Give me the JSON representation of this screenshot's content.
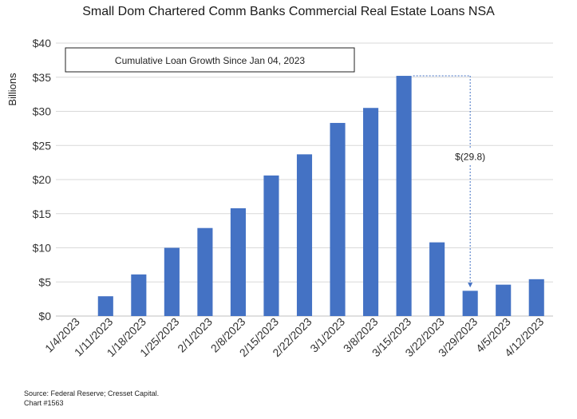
{
  "chart_data": {
    "type": "bar",
    "title": "Small Dom Chartered Comm Banks Commercial Real Estate Loans NSA",
    "subtitle": "Cumulative Loan Growth Since Jan 04, 2023",
    "ylabel": "Billions",
    "xlabel": "",
    "ylim": [
      0,
      40
    ],
    "yticks": [
      0,
      5,
      10,
      15,
      20,
      25,
      30,
      35,
      40
    ],
    "ytick_labels": [
      "$0",
      "$5",
      "$10",
      "$15",
      "$20",
      "$25",
      "$30",
      "$35",
      "$40"
    ],
    "grid": true,
    "bar_color": "#4472C4",
    "categories": [
      "1/4/2023",
      "1/11/2023",
      "1/18/2023",
      "1/25/2023",
      "2/1/2023",
      "2/8/2023",
      "2/15/2023",
      "2/22/2023",
      "3/1/2023",
      "3/8/2023",
      "3/15/2023",
      "3/22/2023",
      "3/29/2023",
      "4/5/2023",
      "4/12/2023"
    ],
    "values": [
      0,
      2.9,
      6.1,
      10.0,
      12.9,
      15.8,
      20.6,
      23.7,
      28.3,
      30.5,
      35.2,
      10.8,
      3.7,
      4.6,
      5.4
    ],
    "annotation": {
      "text": "$(29.8)",
      "from_category": "3/15/2023",
      "to_category": "3/29/2023",
      "from_value": 35.2,
      "to_value": 4.2,
      "color": "#4472C4"
    }
  },
  "footer": {
    "source": "Source: Federal Reserve; Cresset Capital.",
    "chart_number": "Chart #1563"
  }
}
